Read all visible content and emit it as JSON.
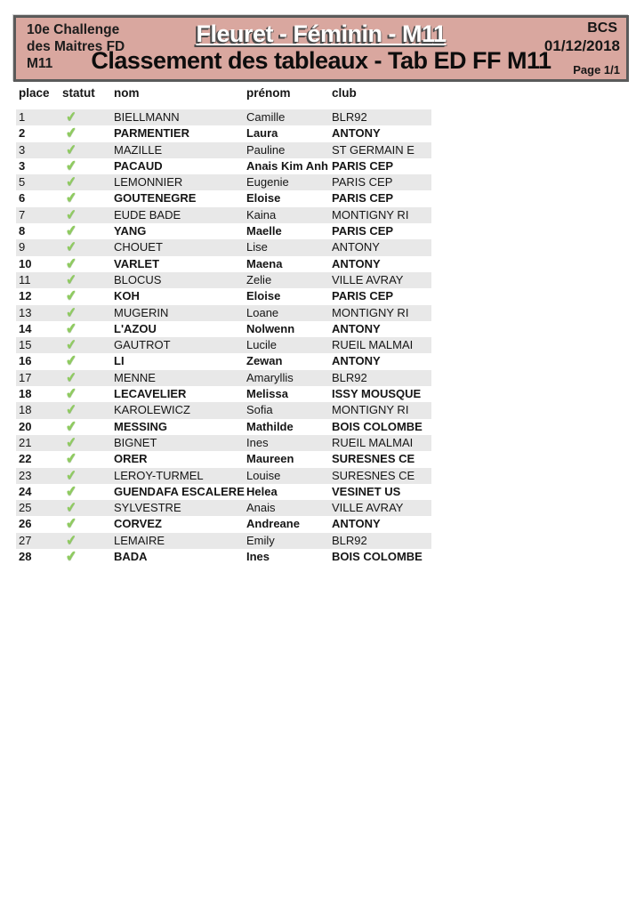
{
  "header": {
    "band_color": "#d9a79f",
    "border_color": "#5a5a5a",
    "left": {
      "line1": "10e Challenge",
      "line2": "des Maitres FD",
      "line3": "M11"
    },
    "title_main": "Fleuret - Féminin - M11",
    "title_sub": "Classement des tableaux - Tab ED FF M11",
    "right": {
      "org": "BCS",
      "date": "01/12/2018",
      "page": "Page 1/1"
    }
  },
  "table": {
    "columns": [
      "place",
      "statut",
      "nom",
      "prénom",
      "club"
    ],
    "stripe_color": "#e8e8e8",
    "check_color": "#8fcb60",
    "status_check_glyph": "✔",
    "rows": [
      {
        "place": "1",
        "statut": true,
        "nom": "BIELLMANN",
        "prenom": "Camille",
        "club": "BLR92"
      },
      {
        "place": "2",
        "statut": true,
        "nom": "PARMENTIER",
        "prenom": "Laura",
        "club": "ANTONY"
      },
      {
        "place": "3",
        "statut": true,
        "nom": "MAZILLE",
        "prenom": "Pauline",
        "club": "ST GERMAIN E"
      },
      {
        "place": "3",
        "statut": true,
        "nom": "PACAUD",
        "prenom": "Anais Kim Anh",
        "club": "PARIS CEP"
      },
      {
        "place": "5",
        "statut": true,
        "nom": "LEMONNIER",
        "prenom": "Eugenie",
        "club": "PARIS CEP"
      },
      {
        "place": "6",
        "statut": true,
        "nom": "GOUTENEGRE",
        "prenom": "Eloise",
        "club": "PARIS CEP"
      },
      {
        "place": "7",
        "statut": true,
        "nom": "EUDE BADE",
        "prenom": "Kaina",
        "club": "MONTIGNY RI"
      },
      {
        "place": "8",
        "statut": true,
        "nom": "YANG",
        "prenom": "Maelle",
        "club": "PARIS CEP"
      },
      {
        "place": "9",
        "statut": true,
        "nom": "CHOUET",
        "prenom": "Lise",
        "club": "ANTONY"
      },
      {
        "place": "10",
        "statut": true,
        "nom": "VARLET",
        "prenom": "Maena",
        "club": "ANTONY"
      },
      {
        "place": "11",
        "statut": true,
        "nom": "BLOCUS",
        "prenom": "Zelie",
        "club": "VILLE AVRAY"
      },
      {
        "place": "12",
        "statut": true,
        "nom": "KOH",
        "prenom": "Eloise",
        "club": "PARIS CEP"
      },
      {
        "place": "13",
        "statut": true,
        "nom": "MUGERIN",
        "prenom": "Loane",
        "club": "MONTIGNY RI"
      },
      {
        "place": "14",
        "statut": true,
        "nom": "L'AZOU",
        "prenom": "Nolwenn",
        "club": "ANTONY"
      },
      {
        "place": "15",
        "statut": true,
        "nom": "GAUTROT",
        "prenom": "Lucile",
        "club": "RUEIL MALMAI"
      },
      {
        "place": "16",
        "statut": true,
        "nom": "LI",
        "prenom": "Zewan",
        "club": "ANTONY"
      },
      {
        "place": "17",
        "statut": true,
        "nom": "MENNE",
        "prenom": "Amaryllis",
        "club": "BLR92"
      },
      {
        "place": "18",
        "statut": true,
        "nom": "LECAVELIER",
        "prenom": "Melissa",
        "club": "ISSY MOUSQUE"
      },
      {
        "place": "18",
        "statut": true,
        "nom": "KAROLEWICZ",
        "prenom": "Sofia",
        "club": "MONTIGNY RI"
      },
      {
        "place": "20",
        "statut": true,
        "nom": "MESSING",
        "prenom": "Mathilde",
        "club": "BOIS COLOMBE"
      },
      {
        "place": "21",
        "statut": true,
        "nom": "BIGNET",
        "prenom": "Ines",
        "club": "RUEIL MALMAI"
      },
      {
        "place": "22",
        "statut": true,
        "nom": "ORER",
        "prenom": "Maureen",
        "club": "SURESNES CE"
      },
      {
        "place": "23",
        "statut": true,
        "nom": "LEROY-TURMEL",
        "prenom": "Louise",
        "club": "SURESNES CE"
      },
      {
        "place": "24",
        "statut": true,
        "nom": "GUENDAFA ESCALERE",
        "prenom": "Helea",
        "club": "VESINET US"
      },
      {
        "place": "25",
        "statut": true,
        "nom": "SYLVESTRE",
        "prenom": "Anais",
        "club": "VILLE AVRAY"
      },
      {
        "place": "26",
        "statut": true,
        "nom": "CORVEZ",
        "prenom": "Andreane",
        "club": "ANTONY"
      },
      {
        "place": "27",
        "statut": true,
        "nom": "LEMAIRE",
        "prenom": "Emily",
        "club": "BLR92"
      },
      {
        "place": "28",
        "statut": true,
        "nom": "BADA",
        "prenom": "Ines",
        "club": "BOIS COLOMBE"
      }
    ]
  }
}
